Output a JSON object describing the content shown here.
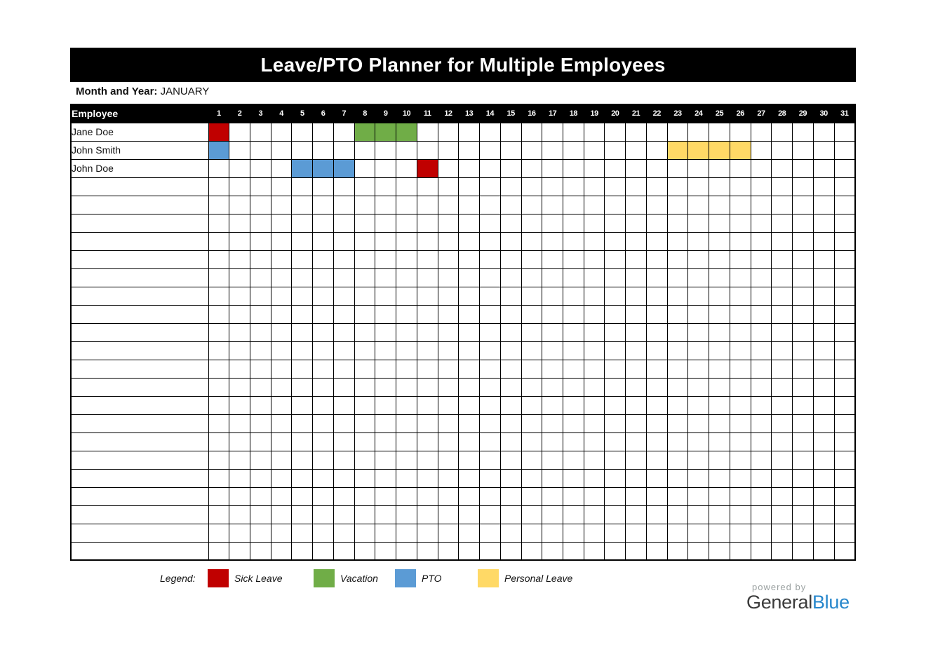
{
  "title": "Leave/PTO Planner for Multiple Employees",
  "month": {
    "label": "Month and Year:",
    "value": "JANUARY"
  },
  "table": {
    "employee_header": "Employee",
    "days": [
      1,
      2,
      3,
      4,
      5,
      6,
      7,
      8,
      9,
      10,
      11,
      12,
      13,
      14,
      15,
      16,
      17,
      18,
      19,
      20,
      21,
      22,
      23,
      24,
      25,
      26,
      27,
      28,
      29,
      30,
      31
    ],
    "num_empty_rows": 21,
    "employees": [
      {
        "name": "Jane Doe",
        "leaves": [
          {
            "day": 1,
            "type": "sick"
          },
          {
            "day": 8,
            "type": "vacation"
          },
          {
            "day": 9,
            "type": "vacation"
          },
          {
            "day": 10,
            "type": "vacation"
          }
        ]
      },
      {
        "name": "John Smith",
        "leaves": [
          {
            "day": 1,
            "type": "pto"
          },
          {
            "day": 23,
            "type": "personal"
          },
          {
            "day": 24,
            "type": "personal"
          },
          {
            "day": 25,
            "type": "personal"
          },
          {
            "day": 26,
            "type": "personal"
          }
        ]
      },
      {
        "name": "John Doe",
        "leaves": [
          {
            "day": 5,
            "type": "pto"
          },
          {
            "day": 6,
            "type": "pto"
          },
          {
            "day": 7,
            "type": "pto"
          },
          {
            "day": 11,
            "type": "sick"
          }
        ]
      }
    ]
  },
  "legend": {
    "label": "Legend:",
    "items": [
      {
        "type": "sick",
        "name": "Sick Leave",
        "color": "#C00000"
      },
      {
        "type": "vacation",
        "name": "Vacation",
        "color": "#70AD47"
      },
      {
        "type": "pto",
        "name": "PTO",
        "color": "#5B9BD5"
      },
      {
        "type": "personal",
        "name": "Personal Leave",
        "color": "#FFD966"
      }
    ]
  },
  "footer": {
    "powered_by": "powered by",
    "brand_part1": "General",
    "brand_part2": "Blue",
    "brand_color1": "#3b3b3b",
    "brand_color2": "#2787cc"
  }
}
